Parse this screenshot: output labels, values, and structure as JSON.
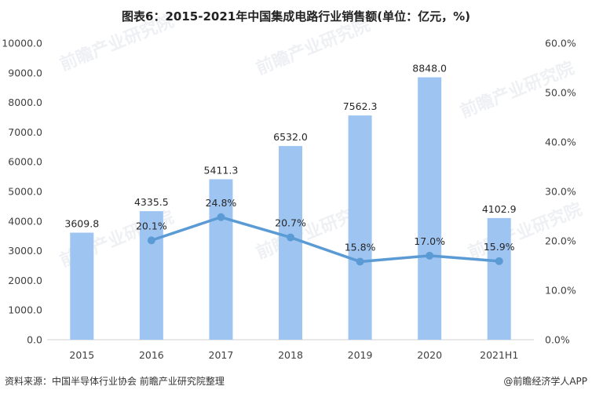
{
  "chart_data": {
    "type": "bar",
    "title": "图表6：2015-2021年中国集成电路行业销售额(单位：亿元，%)",
    "categories": [
      "2015",
      "2016",
      "2017",
      "2018",
      "2019",
      "2020",
      "2021H1"
    ],
    "series": [
      {
        "kind": "bar",
        "axis": "left",
        "values": [
          3609.8,
          4335.5,
          5411.3,
          6532.0,
          7562.3,
          8848.0,
          4102.9
        ],
        "labels": [
          "3609.8",
          "4335.5",
          "5411.3",
          "6532.0",
          "7562.3",
          "8848.0",
          "4102.9"
        ],
        "color": "#9ec5f2"
      },
      {
        "kind": "line",
        "axis": "right",
        "x": [
          "2016",
          "2017",
          "2018",
          "2019",
          "2020",
          "2021H1"
        ],
        "values": [
          20.1,
          24.8,
          20.7,
          15.8,
          17.0,
          15.9
        ],
        "labels": [
          "20.1%",
          "24.8%",
          "20.7%",
          "15.8%",
          "17.0%",
          "15.9%"
        ],
        "color": "#5b9bd5"
      }
    ],
    "left_axis": {
      "ylim": [
        0,
        10000
      ],
      "ticks": [
        "0.0",
        "1000.0",
        "2000.0",
        "3000.0",
        "4000.0",
        "5000.0",
        "6000.0",
        "7000.0",
        "8000.0",
        "9000.0",
        "10000.0"
      ]
    },
    "right_axis": {
      "ylim": [
        0,
        60
      ],
      "ticks": [
        "0.0%",
        "10.0%",
        "20.0%",
        "30.0%",
        "40.0%",
        "50.0%",
        "60.0%"
      ]
    },
    "grid": false,
    "legend": "none"
  },
  "footer": {
    "source": "资料来源：中国半导体行业协会 前瞻产业研究院整理",
    "brand": "@前瞻经济学人APP"
  },
  "watermark": {
    "text": "前瞻产业研究院"
  }
}
